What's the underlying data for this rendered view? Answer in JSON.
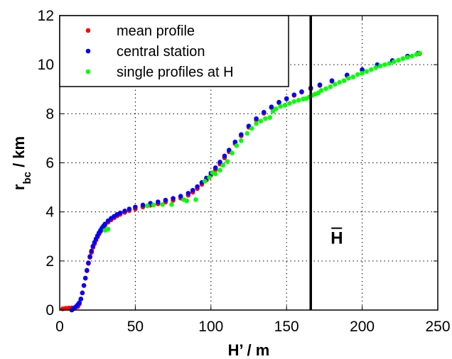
{
  "chart_data": {
    "type": "scatter",
    "xlabel": "H’ / m",
    "ylabel_main": "r",
    "ylabel_sub": "bc",
    "ylabel_unit": " / km",
    "xlim": [
      0,
      250
    ],
    "ylim": [
      0,
      12
    ],
    "xticks": [
      0,
      50,
      100,
      150,
      200,
      250
    ],
    "yticks": [
      0,
      2,
      4,
      6,
      8,
      10,
      12
    ],
    "grid": true,
    "legend_position": "top-left",
    "vertical_line": {
      "x": 166,
      "label": "H",
      "label_overline": true
    },
    "colors": {
      "mean": "#ff0000",
      "central": "#0000ff",
      "single": "#00ff00",
      "line": "#000000"
    },
    "series": [
      {
        "name": "mean profile",
        "color": "#ff0000",
        "x": [
          2,
          4,
          6,
          8,
          10,
          12,
          13,
          14,
          15,
          16,
          17,
          18,
          19,
          20,
          21,
          22,
          23,
          24,
          25,
          26,
          27,
          28,
          29,
          30,
          32,
          34,
          36,
          38,
          40,
          43,
          46,
          50,
          55,
          60,
          65,
          70,
          75,
          80,
          85,
          88,
          91,
          94,
          97,
          100,
          103,
          106,
          109,
          112,
          116,
          120,
          125,
          130,
          135,
          140,
          145,
          150,
          155,
          160,
          166,
          172,
          180,
          190,
          200,
          210,
          220,
          230,
          238
        ],
        "y": [
          0.05,
          0.07,
          0.08,
          0.09,
          0.1,
          0.14,
          0.25,
          0.45,
          0.7,
          1.0,
          1.3,
          1.6,
          1.9,
          2.15,
          2.35,
          2.55,
          2.7,
          2.85,
          2.98,
          3.1,
          3.2,
          3.3,
          3.38,
          3.46,
          3.58,
          3.68,
          3.76,
          3.84,
          3.9,
          3.98,
          4.05,
          4.12,
          4.2,
          4.27,
          4.33,
          4.4,
          4.47,
          4.56,
          4.68,
          4.8,
          4.95,
          5.12,
          5.3,
          5.5,
          5.72,
          5.95,
          6.2,
          6.45,
          6.78,
          7.1,
          7.45,
          7.75,
          8.02,
          8.25,
          8.45,
          8.6,
          8.75,
          8.88,
          9.02,
          9.15,
          9.32,
          9.55,
          9.78,
          9.98,
          10.15,
          10.32,
          10.45
        ]
      },
      {
        "name": "central station",
        "color": "#0000ff",
        "x": [
          8,
          9,
          10,
          11,
          12,
          13,
          14,
          15,
          16,
          17,
          18,
          19,
          20,
          21,
          22,
          23,
          24,
          25,
          26,
          27,
          28,
          29,
          30,
          32,
          34,
          36,
          38,
          40,
          43,
          46,
          50,
          55,
          60,
          65,
          70,
          75,
          80,
          85,
          88,
          91,
          94,
          97,
          100,
          103,
          106,
          109,
          112,
          116,
          120,
          125,
          130,
          135,
          140,
          145,
          150,
          155,
          160,
          166,
          172,
          180,
          190,
          200,
          210,
          220,
          230,
          237
        ],
        "y": [
          0.0,
          0.05,
          0.1,
          0.15,
          0.22,
          0.3,
          0.45,
          0.7,
          1.0,
          1.3,
          1.62,
          1.92,
          2.18,
          2.4,
          2.6,
          2.76,
          2.9,
          3.03,
          3.15,
          3.25,
          3.35,
          3.43,
          3.51,
          3.64,
          3.74,
          3.82,
          3.9,
          3.96,
          4.04,
          4.12,
          4.2,
          4.28,
          4.35,
          4.41,
          4.48,
          4.55,
          4.64,
          4.76,
          4.88,
          5.03,
          5.2,
          5.38,
          5.58,
          5.8,
          6.03,
          6.28,
          6.52,
          6.85,
          7.15,
          7.5,
          7.8,
          8.06,
          8.28,
          8.47,
          8.62,
          8.77,
          8.9,
          9.05,
          9.18,
          9.35,
          9.58,
          9.8,
          10.0,
          10.17,
          10.35,
          10.47
        ]
      },
      {
        "name": "single profiles at H",
        "color": "#00ff00",
        "x": [
          30,
          32,
          58,
          62,
          68,
          74,
          82,
          84,
          90,
          96,
          99,
          101,
          103,
          106,
          108,
          111,
          114,
          117,
          120,
          124,
          127,
          130,
          133,
          136,
          139,
          141,
          143,
          146,
          149,
          152,
          155,
          158,
          161,
          163,
          165,
          167,
          169,
          171,
          173,
          176,
          179,
          182,
          185,
          188,
          191,
          194,
          197,
          200,
          203,
          206,
          209,
          212,
          215,
          218,
          221,
          224,
          227,
          230,
          233,
          236,
          238
        ],
        "y": [
          3.25,
          3.3,
          4.25,
          4.28,
          4.3,
          4.3,
          4.5,
          4.45,
          4.5,
          5.25,
          5.4,
          5.6,
          5.55,
          5.7,
          5.9,
          6.05,
          6.4,
          6.7,
          6.9,
          7.2,
          7.4,
          7.6,
          7.7,
          7.8,
          7.85,
          8.1,
          8.2,
          8.3,
          8.35,
          8.42,
          8.5,
          8.55,
          8.6,
          8.62,
          8.68,
          8.75,
          8.8,
          8.85,
          8.95,
          9.02,
          9.1,
          9.2,
          9.28,
          9.35,
          9.45,
          9.5,
          9.6,
          9.65,
          9.72,
          9.8,
          9.88,
          9.95,
          10.0,
          10.05,
          10.12,
          10.18,
          10.25,
          10.3,
          10.35,
          10.42,
          10.47
        ]
      }
    ]
  }
}
